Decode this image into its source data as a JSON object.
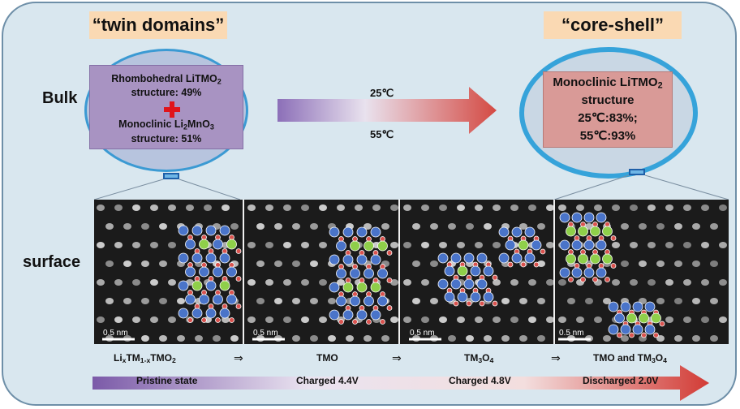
{
  "titles": {
    "left": "“twin domains”",
    "right": "“core-shell”"
  },
  "row_labels": {
    "bulk": "Bulk",
    "surface": "surface"
  },
  "left_bulk": {
    "line1_main": "Rhombohedral LiTMO",
    "line1_sub": "2",
    "line2": "structure: 49%",
    "line3_pre": "Monoclinic Li",
    "line3_sub1": "2",
    "line3_mid": "MnO",
    "line3_sub2": "3",
    "line4": "structure: 51%"
  },
  "right_bulk": {
    "line1_main": "Monoclinic LiTMO",
    "line1_sub": "2",
    "line2": "structure",
    "line3": "25℃:83%;",
    "line4": "55℃:93%"
  },
  "arrow_labels": {
    "top": "25℃",
    "bottom": "55℃"
  },
  "scale_bar": "0.5 nm",
  "captions": {
    "c1_a": "Li",
    "c1_b": "x",
    "c1_c": "TM",
    "c1_d": "1-x",
    "c1_e": "TMO",
    "c1_f": "2",
    "c2": "TMO",
    "c3_a": "TM",
    "c3_b": "3",
    "c3_c": "O",
    "c3_d": "4",
    "c4_a": "TMO and TM",
    "c4_b": "3",
    "c4_c": "O",
    "c4_d": "4",
    "implies": "⇒"
  },
  "stages": [
    "Pristine state",
    "Charged 4.4V",
    "Charged 4.8V",
    "Discharged  2.0V"
  ],
  "colors": {
    "tm_blue": "#4a74c9",
    "li_green": "#8fcf4a",
    "oxygen_red": "#d9534f",
    "accent_cyan": "#36a3da"
  }
}
